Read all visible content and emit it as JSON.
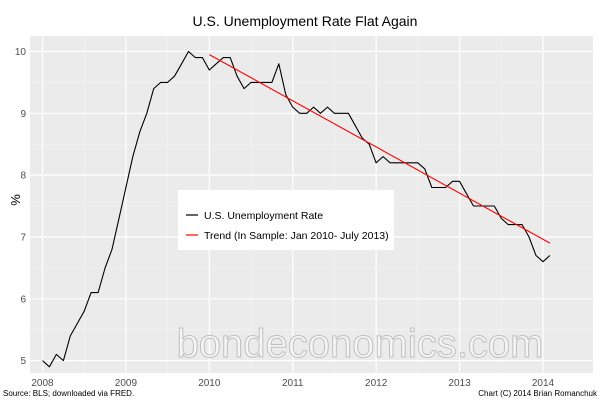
{
  "chart_data": {
    "type": "line",
    "title": "U.S. Unemployment Rate Flat Again",
    "xlabel": "",
    "ylabel": "%",
    "xlim": [
      2007.85,
      2014.6
    ],
    "ylim": [
      4.8,
      10.25
    ],
    "x_ticks": [
      2008,
      2009,
      2010,
      2011,
      2012,
      2013,
      2014
    ],
    "y_ticks": [
      5,
      6,
      7,
      8,
      9,
      10
    ],
    "grid": true,
    "legend_position": "center-left",
    "series": [
      {
        "name": "U.S. Unemployment Rate",
        "color": "#000000",
        "x": [
          2008.0,
          2008.083,
          2008.167,
          2008.25,
          2008.333,
          2008.417,
          2008.5,
          2008.583,
          2008.667,
          2008.75,
          2008.833,
          2008.917,
          2009.0,
          2009.083,
          2009.167,
          2009.25,
          2009.333,
          2009.417,
          2009.5,
          2009.583,
          2009.667,
          2009.75,
          2009.833,
          2009.917,
          2010.0,
          2010.083,
          2010.167,
          2010.25,
          2010.333,
          2010.417,
          2010.5,
          2010.583,
          2010.667,
          2010.75,
          2010.833,
          2010.917,
          2011.0,
          2011.083,
          2011.167,
          2011.25,
          2011.333,
          2011.417,
          2011.5,
          2011.583,
          2011.667,
          2011.75,
          2011.833,
          2011.917,
          2012.0,
          2012.083,
          2012.167,
          2012.25,
          2012.333,
          2012.417,
          2012.5,
          2012.583,
          2012.667,
          2012.75,
          2012.833,
          2012.917,
          2013.0,
          2013.083,
          2013.167,
          2013.25,
          2013.333,
          2013.417,
          2013.5,
          2013.583,
          2013.667,
          2013.75,
          2013.833,
          2013.917,
          2014.0,
          2014.083
        ],
        "values": [
          5.0,
          4.9,
          5.1,
          5.0,
          5.4,
          5.6,
          5.8,
          6.1,
          6.1,
          6.5,
          6.8,
          7.3,
          7.8,
          8.3,
          8.7,
          9.0,
          9.4,
          9.5,
          9.5,
          9.6,
          9.8,
          10.0,
          9.9,
          9.9,
          9.7,
          9.8,
          9.9,
          9.9,
          9.6,
          9.4,
          9.5,
          9.5,
          9.5,
          9.5,
          9.8,
          9.3,
          9.1,
          9.0,
          9.0,
          9.1,
          9.0,
          9.1,
          9.0,
          9.0,
          9.0,
          8.8,
          8.6,
          8.5,
          8.2,
          8.3,
          8.2,
          8.2,
          8.2,
          8.2,
          8.2,
          8.1,
          7.8,
          7.8,
          7.8,
          7.9,
          7.9,
          7.7,
          7.5,
          7.5,
          7.5,
          7.5,
          7.3,
          7.2,
          7.2,
          7.2,
          7.0,
          6.7,
          6.6,
          6.7
        ]
      },
      {
        "name": "Trend (In Sample: Jan 2010- July 2013)",
        "color": "#ff0000",
        "x": [
          2010.0,
          2014.083
        ],
        "values": [
          9.95,
          6.9
        ]
      }
    ],
    "caption_left": "Source: BLS; downloaded via FRED.",
    "caption_right": "Chart (C) 2014 Brian Romanchuk",
    "watermark": "bondeconomics.com"
  }
}
